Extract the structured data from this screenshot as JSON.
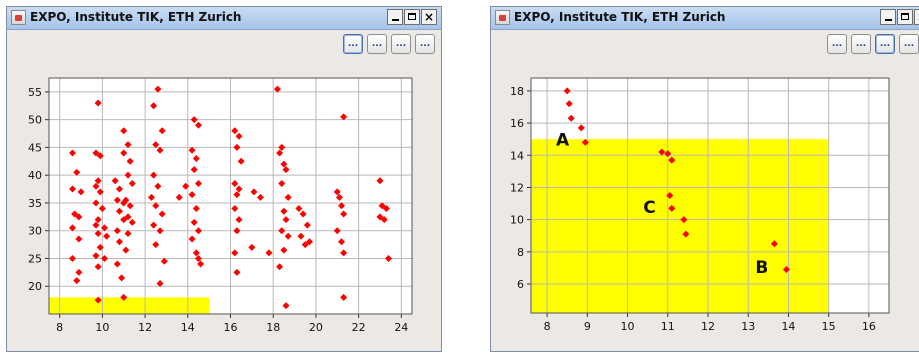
{
  "windows": [
    {
      "title": "EXPO, Institute TIK, ETH Zurich",
      "toolbar": [
        "...",
        "...",
        "...",
        "..."
      ],
      "chart_data": {
        "type": "scatter",
        "xlim": [
          7.5,
          24.5
        ],
        "ylim": [
          15,
          57.5
        ],
        "xticks": [
          8,
          10,
          12,
          14,
          16,
          18,
          20,
          22,
          24
        ],
        "yticks": [
          20,
          25,
          30,
          35,
          40,
          45,
          50,
          55
        ],
        "grid": true,
        "color": "#ff0000",
        "highlight": {
          "x0": 7.5,
          "x1": 15,
          "y0": 15,
          "y1": 18,
          "color": "#ffff00"
        },
        "points": [
          [
            8.6,
            44
          ],
          [
            8.8,
            40.5
          ],
          [
            8.6,
            37.5
          ],
          [
            9,
            37
          ],
          [
            8.7,
            33
          ],
          [
            8.9,
            32.5
          ],
          [
            8.6,
            30.5
          ],
          [
            8.9,
            28.5
          ],
          [
            8.6,
            25
          ],
          [
            8.9,
            22.5
          ],
          [
            8.8,
            21
          ],
          [
            9.8,
            53
          ],
          [
            9.7,
            44
          ],
          [
            9.9,
            43.5
          ],
          [
            9.8,
            39
          ],
          [
            9.7,
            38
          ],
          [
            9.9,
            37
          ],
          [
            9.7,
            35
          ],
          [
            10,
            34
          ],
          [
            9.8,
            32
          ],
          [
            9.7,
            31
          ],
          [
            10.1,
            30.5
          ],
          [
            9.8,
            29.5
          ],
          [
            10.2,
            29
          ],
          [
            9.9,
            27
          ],
          [
            9.7,
            25.5
          ],
          [
            10.1,
            25
          ],
          [
            9.8,
            23.5
          ],
          [
            9.8,
            17.5
          ],
          [
            10.6,
            39
          ],
          [
            10.8,
            37.5
          ],
          [
            10.7,
            35.5
          ],
          [
            11,
            35
          ],
          [
            10.8,
            33.5
          ],
          [
            11,
            32
          ],
          [
            10.7,
            30
          ],
          [
            11.2,
            29.5
          ],
          [
            10.8,
            28
          ],
          [
            11.1,
            26.5
          ],
          [
            10.7,
            24
          ],
          [
            10.9,
            21.5
          ],
          [
            11,
            18
          ],
          [
            11,
            48
          ],
          [
            11.2,
            45.5
          ],
          [
            11,
            44
          ],
          [
            11.3,
            42.5
          ],
          [
            11.2,
            40
          ],
          [
            11.4,
            38.5
          ],
          [
            11.1,
            35.5
          ],
          [
            11.3,
            34.5
          ],
          [
            11.2,
            32.5
          ],
          [
            11.4,
            31.5
          ],
          [
            12.6,
            55.5
          ],
          [
            12.4,
            52.5
          ],
          [
            12.8,
            48
          ],
          [
            12.5,
            45.5
          ],
          [
            12.7,
            44.5
          ],
          [
            12.4,
            40
          ],
          [
            12.6,
            38
          ],
          [
            12.3,
            36
          ],
          [
            12.5,
            34.5
          ],
          [
            12.8,
            33
          ],
          [
            12.4,
            31
          ],
          [
            12.7,
            30
          ],
          [
            12.5,
            27.5
          ],
          [
            12.9,
            24.5
          ],
          [
            12.7,
            20.5
          ],
          [
            14.3,
            50
          ],
          [
            14.5,
            49
          ],
          [
            14.2,
            44.5
          ],
          [
            14.4,
            43
          ],
          [
            14.3,
            41
          ],
          [
            14.5,
            38.5
          ],
          [
            14.2,
            36.5
          ],
          [
            14.4,
            34
          ],
          [
            14.3,
            31.5
          ],
          [
            14.5,
            30
          ],
          [
            14.2,
            28.5
          ],
          [
            14.4,
            26
          ],
          [
            14.5,
            25
          ],
          [
            14.6,
            24
          ],
          [
            13.6,
            36
          ],
          [
            13.9,
            38
          ],
          [
            16.2,
            48
          ],
          [
            16.4,
            47
          ],
          [
            16.3,
            45
          ],
          [
            16.5,
            42.5
          ],
          [
            16.2,
            38.5
          ],
          [
            16.4,
            37.5
          ],
          [
            16.3,
            36.5
          ],
          [
            16.2,
            34
          ],
          [
            16.4,
            32
          ],
          [
            16.3,
            30
          ],
          [
            16.2,
            26
          ],
          [
            16.3,
            22.5
          ],
          [
            17.1,
            37
          ],
          [
            17.4,
            36
          ],
          [
            17,
            27
          ],
          [
            17.8,
            26
          ],
          [
            18.2,
            55.5
          ],
          [
            18.4,
            45
          ],
          [
            18.3,
            44
          ],
          [
            18.5,
            42
          ],
          [
            18.6,
            41
          ],
          [
            18.4,
            38.5
          ],
          [
            18.7,
            36
          ],
          [
            18.5,
            33.5
          ],
          [
            18.6,
            32
          ],
          [
            18.4,
            30
          ],
          [
            18.7,
            29
          ],
          [
            18.5,
            26.5
          ],
          [
            18.3,
            23.5
          ],
          [
            18.6,
            16.5
          ],
          [
            19.2,
            34
          ],
          [
            19.4,
            33
          ],
          [
            19.6,
            31
          ],
          [
            19.3,
            29
          ],
          [
            19.5,
            27.5
          ],
          [
            19.7,
            28
          ],
          [
            21,
            37
          ],
          [
            21.1,
            36
          ],
          [
            21.2,
            34.5
          ],
          [
            21.3,
            33
          ],
          [
            21,
            30
          ],
          [
            21.2,
            28
          ],
          [
            21.3,
            26
          ],
          [
            21.3,
            50.5
          ],
          [
            21.3,
            18
          ],
          [
            23,
            39
          ],
          [
            23.1,
            34.5
          ],
          [
            23.3,
            34
          ],
          [
            23,
            32.5
          ],
          [
            23.2,
            32
          ],
          [
            23.4,
            25
          ]
        ]
      }
    },
    {
      "title": "EXPO, Institute TIK, ETH Zurich",
      "toolbar": [
        "...",
        "...",
        "...",
        "..."
      ],
      "chart_data": {
        "type": "scatter",
        "xlim": [
          7.6,
          16.5
        ],
        "ylim": [
          4.2,
          18.8
        ],
        "xticks": [
          8,
          9,
          10,
          11,
          12,
          13,
          14,
          15,
          16
        ],
        "yticks": [
          6,
          8,
          10,
          12,
          14,
          16,
          18
        ],
        "grid": true,
        "color": "#ff0000",
        "highlight": {
          "x0": 7.6,
          "x1": 15,
          "y0": 4.2,
          "y1": 15,
          "color": "#ffff00"
        },
        "points": [
          [
            8.5,
            18
          ],
          [
            8.55,
            17.2
          ],
          [
            8.6,
            16.3
          ],
          [
            8.85,
            15.7
          ],
          [
            8.95,
            14.8
          ],
          [
            10.85,
            14.2
          ],
          [
            11,
            14.1
          ],
          [
            11.1,
            13.7
          ],
          [
            11.05,
            11.5
          ],
          [
            11.1,
            10.7
          ],
          [
            11.4,
            10
          ],
          [
            11.45,
            9.1
          ],
          [
            13.65,
            8.5
          ],
          [
            13.95,
            6.9
          ]
        ],
        "annotations": [
          {
            "text": "A",
            "x": 8.55,
            "y": 14.6
          },
          {
            "text": "C",
            "x": 10.7,
            "y": 10.4
          },
          {
            "text": "B",
            "x": 13.5,
            "y": 6.7
          }
        ]
      }
    }
  ]
}
